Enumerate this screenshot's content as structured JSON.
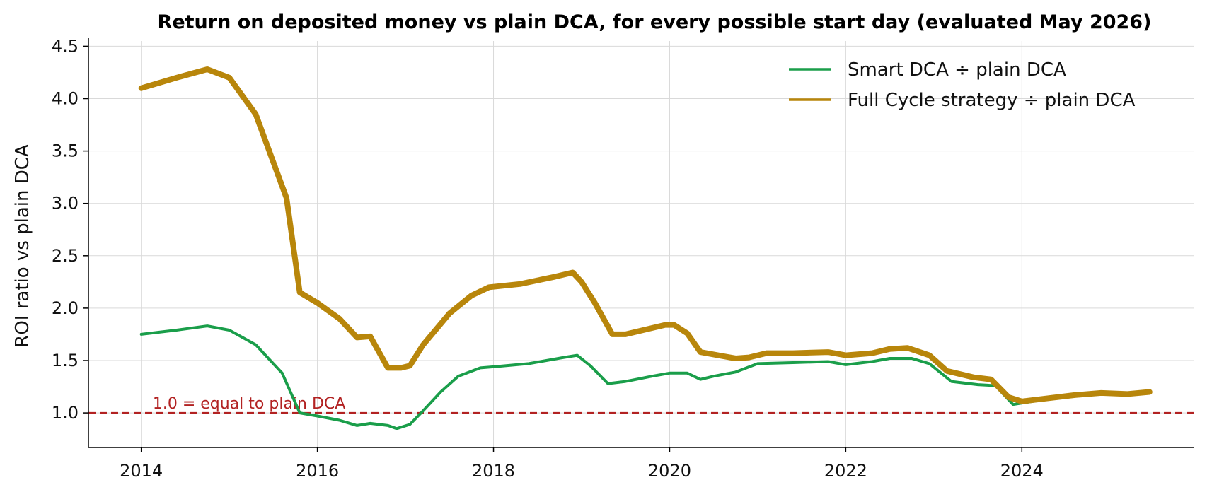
{
  "chart_data": {
    "type": "line",
    "title": "Return on deposited money vs plain DCA, for every possible start day (evaluated May 2026)",
    "xlabel": "",
    "ylabel": "ROI ratio vs plain DCA",
    "xlim": [
      2013.4,
      2025.95
    ],
    "ylim": [
      0.67,
      4.55
    ],
    "x_ticks": [
      2014,
      2016,
      2018,
      2020,
      2022,
      2024
    ],
    "y_ticks": [
      1.0,
      1.5,
      2.0,
      2.5,
      3.0,
      3.5,
      4.0,
      4.5
    ],
    "grid": true,
    "legend_position": "top-right",
    "reference_line": {
      "y": 1.0,
      "label": "1.0 = equal to plain DCA",
      "color": "#b22222",
      "style": "dashed"
    },
    "series": [
      {
        "name": "Smart DCA ÷ plain DCA",
        "color": "#1a9e4a",
        "x": [
          2014.0,
          2014.4,
          2014.75,
          2015.0,
          2015.3,
          2015.6,
          2015.8,
          2016.0,
          2016.25,
          2016.45,
          2016.6,
          2016.8,
          2016.9,
          2017.05,
          2017.2,
          2017.4,
          2017.6,
          2017.85,
          2018.0,
          2018.4,
          2018.8,
          2018.95,
          2019.1,
          2019.3,
          2019.5,
          2019.8,
          2020.0,
          2020.2,
          2020.35,
          2020.5,
          2020.75,
          2021.0,
          2021.4,
          2021.8,
          2022.0,
          2022.3,
          2022.5,
          2022.75,
          2022.95,
          2023.2,
          2023.5,
          2023.7,
          2023.9,
          2024.2,
          2024.6,
          2024.9,
          2025.2,
          2025.45
        ],
        "values": [
          1.75,
          1.79,
          1.83,
          1.79,
          1.65,
          1.38,
          1.0,
          0.97,
          0.93,
          0.88,
          0.9,
          0.88,
          0.85,
          0.89,
          1.02,
          1.2,
          1.35,
          1.43,
          1.44,
          1.47,
          1.53,
          1.55,
          1.45,
          1.28,
          1.3,
          1.35,
          1.38,
          1.38,
          1.32,
          1.35,
          1.39,
          1.47,
          1.48,
          1.49,
          1.46,
          1.49,
          1.52,
          1.52,
          1.47,
          1.3,
          1.27,
          1.26,
          1.08,
          1.12,
          1.17,
          1.19,
          1.18,
          1.2
        ]
      },
      {
        "name": "Full Cycle strategy ÷ plain DCA",
        "color": "#b8860b",
        "x": [
          2014.0,
          2014.4,
          2014.75,
          2015.0,
          2015.3,
          2015.65,
          2015.8,
          2016.0,
          2016.25,
          2016.45,
          2016.6,
          2016.8,
          2016.95,
          2017.05,
          2017.2,
          2017.5,
          2017.75,
          2017.95,
          2018.3,
          2018.7,
          2018.9,
          2019.0,
          2019.15,
          2019.35,
          2019.5,
          2019.75,
          2019.95,
          2020.05,
          2020.2,
          2020.35,
          2020.55,
          2020.75,
          2020.9,
          2021.1,
          2021.4,
          2021.8,
          2022.0,
          2022.3,
          2022.5,
          2022.7,
          2022.95,
          2023.15,
          2023.45,
          2023.65,
          2023.85,
          2024.0,
          2024.2,
          2024.6,
          2024.9,
          2025.2,
          2025.45
        ],
        "values": [
          4.1,
          4.2,
          4.28,
          4.2,
          3.85,
          3.05,
          2.15,
          2.05,
          1.9,
          1.72,
          1.73,
          1.43,
          1.43,
          1.45,
          1.65,
          1.95,
          2.12,
          2.2,
          2.23,
          2.3,
          2.34,
          2.25,
          2.05,
          1.75,
          1.75,
          1.8,
          1.84,
          1.84,
          1.76,
          1.58,
          1.55,
          1.52,
          1.53,
          1.57,
          1.57,
          1.58,
          1.55,
          1.57,
          1.61,
          1.62,
          1.55,
          1.4,
          1.34,
          1.32,
          1.15,
          1.11,
          1.13,
          1.17,
          1.19,
          1.18,
          1.2
        ]
      }
    ]
  }
}
